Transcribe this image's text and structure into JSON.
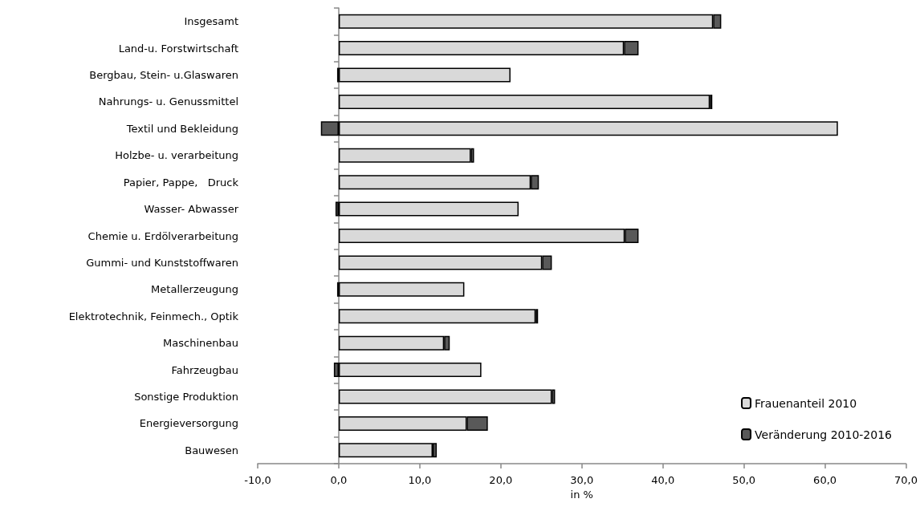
{
  "chart_data": {
    "type": "bar",
    "orientation": "horizontal",
    "stacked": true,
    "xlabel": "in %",
    "categories": [
      "Insgesamt",
      "Land-u. Forstwirtschaft",
      "Bergbau, Stein- u.Glaswaren",
      "Nahrungs- u. Genussmittel",
      "Textil und Bekleidung",
      "Holzbe- u. verarbeitung",
      "Papier, Pappe,   Druck",
      "Wasser- Abwasser",
      "Chemie u. Erdölverarbeitung",
      "Gummi- und Kunststoffwaren",
      "Metallerzeugung",
      "Elektrotechnik, Feinmech., Optik",
      "Maschinenbau",
      "Fahrzeugbau",
      "Sonstige Produktion",
      "Energieversorgung",
      "Bauwesen"
    ],
    "series": [
      {
        "name": "Frauenanteil 2010",
        "color": "#d9d9d9",
        "values": [
          46.2,
          35.2,
          21.2,
          45.8,
          61.6,
          16.3,
          23.7,
          22.2,
          35.3,
          25.1,
          15.5,
          24.3,
          13.0,
          17.6,
          26.3,
          15.8,
          11.6
        ]
      },
      {
        "name": "Veränderung 2010-2016",
        "color": "#595959",
        "values": [
          1.0,
          1.8,
          -0.2,
          0.3,
          -2.2,
          0.4,
          1.0,
          -0.4,
          1.7,
          1.2,
          -0.2,
          0.3,
          0.7,
          -0.6,
          0.4,
          2.6,
          0.5
        ]
      }
    ],
    "xlim": [
      -10,
      70
    ],
    "xticks": [
      {
        "value": -10,
        "label": "-10,0"
      },
      {
        "value": 0,
        "label": "0,0"
      },
      {
        "value": 10,
        "label": "10,0"
      },
      {
        "value": 20,
        "label": "20,0"
      },
      {
        "value": 30,
        "label": "30,0"
      },
      {
        "value": 40,
        "label": "40,0"
      },
      {
        "value": 50,
        "label": "50,0"
      },
      {
        "value": 60,
        "label": "60,0"
      },
      {
        "value": 70,
        "label": "70,0"
      }
    ],
    "legend": "bottom right"
  }
}
